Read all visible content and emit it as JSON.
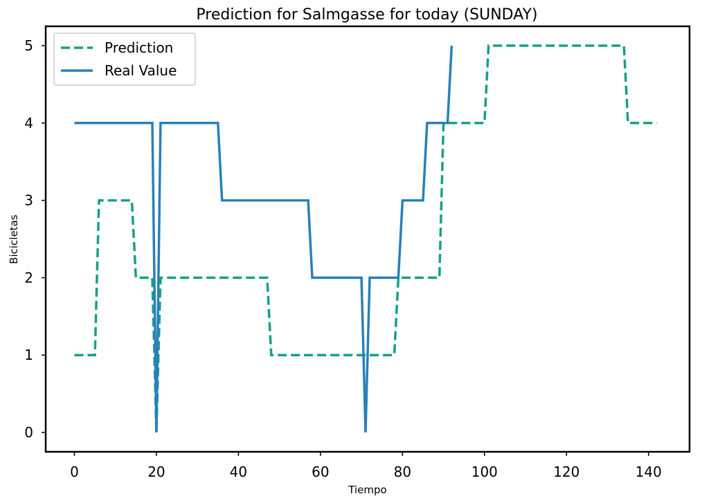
{
  "chart_data": {
    "type": "line",
    "title": "Prediction for Salmgasse for today (SUNDAY)",
    "xlabel": "Tiempo",
    "ylabel": "Bicicletas",
    "xlim": [
      -7,
      150
    ],
    "ylim": [
      -0.25,
      5.25
    ],
    "xticks": [
      0,
      20,
      40,
      60,
      80,
      100,
      120,
      140
    ],
    "yticks": [
      0,
      1,
      2,
      3,
      4,
      5
    ],
    "grid": false,
    "legend_position": "top-left",
    "series": [
      {
        "name": "Prediction",
        "color": "#16a085",
        "style": "dashed",
        "x": [
          0,
          5,
          6,
          14,
          15,
          19,
          19.5,
          20,
          20.5,
          21,
          47,
          48,
          78,
          79,
          89,
          90,
          100,
          101,
          134,
          135,
          142
        ],
        "y": [
          1,
          1,
          3,
          3,
          2,
          2,
          1,
          0,
          1,
          2,
          2,
          1,
          1,
          2,
          2,
          4,
          4,
          5,
          5,
          4,
          4
        ]
      },
      {
        "name": "Real Value",
        "color": "#2980b9",
        "style": "solid",
        "x": [
          0,
          19,
          20,
          21,
          35,
          36,
          57,
          58,
          70,
          71,
          72,
          79,
          80,
          85,
          86,
          91,
          92
        ],
        "y": [
          4,
          4,
          0,
          4,
          4,
          3,
          3,
          2,
          2,
          0,
          2,
          2,
          3,
          3,
          4,
          4,
          5
        ]
      }
    ]
  }
}
